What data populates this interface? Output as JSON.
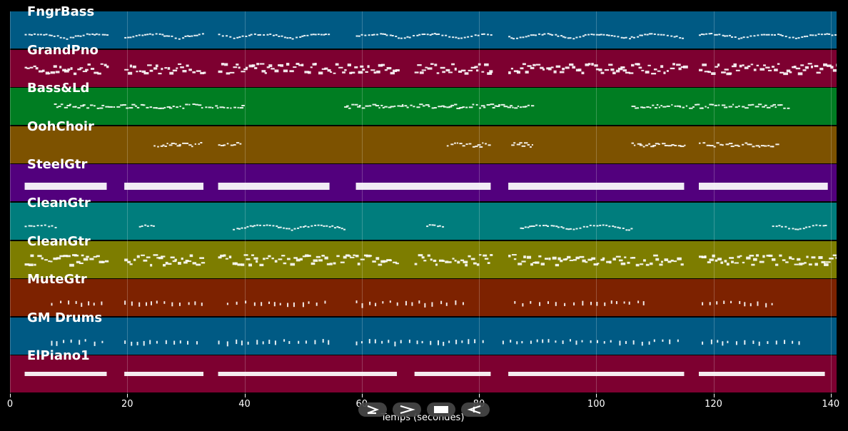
{
  "tracks": [
    {
      "name": "FngrBass",
      "color": "#005a84"
    },
    {
      "name": "GrandPno",
      "color": "#7d0030"
    },
    {
      "name": "Bass&Ld",
      "color": "#007d22"
    },
    {
      "name": "OohChoir",
      "color": "#7d5200"
    },
    {
      "name": "SteelGtr",
      "color": "#52007d"
    },
    {
      "name": "CleanGtr",
      "color": "#007d7d"
    },
    {
      "name": "CleanGtr",
      "color": "#7d7d00"
    },
    {
      "name": "MuteGtr",
      "color": "#7d2200"
    },
    {
      "name": "GM Drums",
      "color": "#005a84"
    },
    {
      "name": "ElPiano1",
      "color": "#7d0030"
    }
  ],
  "axis": {
    "xlabel": "Temps (secondes)",
    "xlim": [
      0,
      141
    ],
    "ticks": [
      "0",
      "20",
      "40",
      "60",
      "80",
      "100",
      "120",
      "140"
    ]
  },
  "controls": [
    {
      "name": "play-icon"
    },
    {
      "name": "fast-forward-icon"
    },
    {
      "name": "stop-icon"
    },
    {
      "name": "rewind-icon"
    }
  ]
}
